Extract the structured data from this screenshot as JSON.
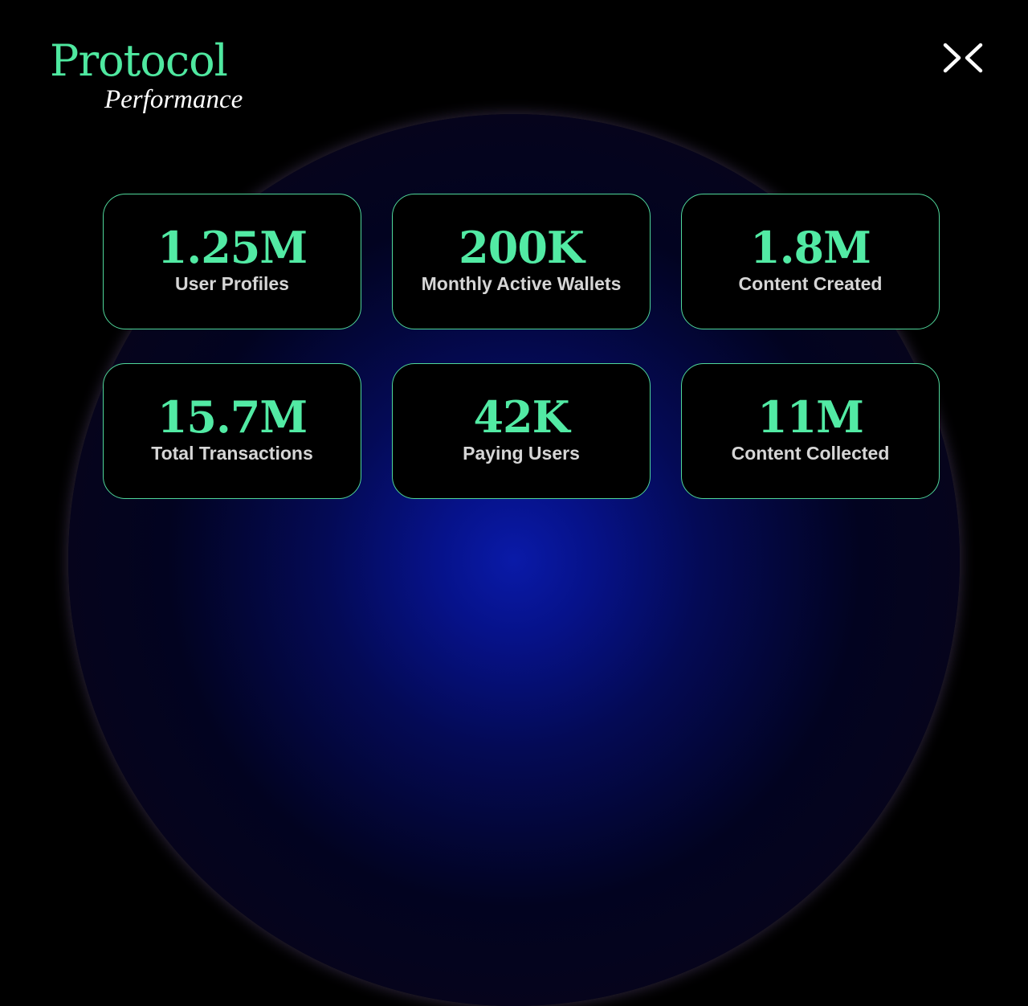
{
  "header": {
    "title": "Protocol",
    "subtitle": "Performance",
    "logo_icon": "double-chevron-x-icon"
  },
  "colors": {
    "accent": "#52eaa4",
    "label": "#d6d6d6",
    "background": "#000000",
    "sphere_core": "#0a1aa8",
    "sphere_rim": "#a58ccb"
  },
  "stats": [
    {
      "value": "1.25M",
      "label": "User Profiles"
    },
    {
      "value": "200K",
      "label": "Monthly Active Wallets"
    },
    {
      "value": "1.8M",
      "label": "Content Created"
    },
    {
      "value": "15.7M",
      "label": "Total Transactions"
    },
    {
      "value": "42K",
      "label": "Paying Users"
    },
    {
      "value": "11M",
      "label": "Content Collected"
    }
  ]
}
